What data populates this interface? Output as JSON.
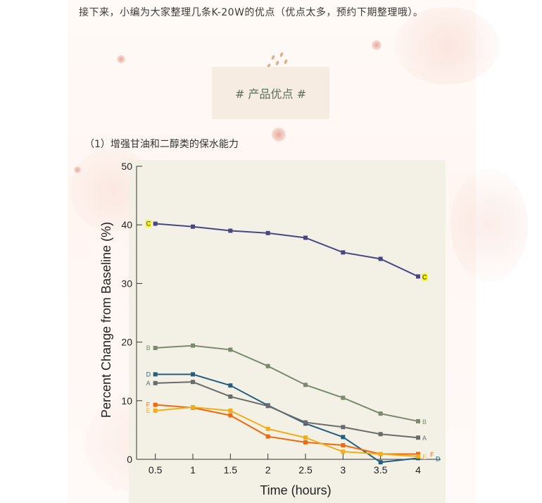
{
  "intro": {
    "text": "接下来，小编为大家整理几条K-20W的优点（优点太多，预约下期整理哦）。"
  },
  "badge": {
    "text": "# 产品优点 #"
  },
  "section": {
    "title": "（1）增强甘油和二醇类的保水能力"
  },
  "colors": {
    "C": "#4a4585",
    "B": "#7b8a6e",
    "D": "#245f80",
    "A": "#6b6b6b",
    "F": "#ee6a10",
    "E": "#f0ae1a",
    "highlight": "#f5f500"
  },
  "chart_data": {
    "type": "line",
    "title": "",
    "xlabel": "Time (hours)",
    "ylabel": "Percent Change from Baseline (%)",
    "x": [
      0.5,
      1,
      1.5,
      2,
      2.5,
      3,
      3.5,
      4
    ],
    "xlim": [
      0.25,
      4.3
    ],
    "ylim": [
      0,
      50
    ],
    "x_ticks": [
      "0.5",
      "1",
      "1.5",
      "2",
      "2.5",
      "3",
      "3.5",
      "4"
    ],
    "y_ticks": [
      0,
      10,
      20,
      30,
      40,
      50
    ],
    "y_tick_labels": [
      "0",
      "10",
      "20",
      "30",
      "40",
      "50"
    ],
    "grid": false,
    "series": [
      {
        "name": "C",
        "values": [
          40.2,
          39.7,
          39.0,
          38.6,
          37.8,
          35.3,
          34.2,
          31.2
        ]
      },
      {
        "name": "B",
        "values": [
          19.0,
          19.4,
          18.7,
          15.9,
          12.7,
          10.5,
          7.8,
          6.5
        ]
      },
      {
        "name": "D",
        "values": [
          14.5,
          14.5,
          12.6,
          9.2,
          6.1,
          3.8,
          -0.5,
          0.2
        ]
      },
      {
        "name": "A",
        "values": [
          13.0,
          13.2,
          10.7,
          9.1,
          6.3,
          5.5,
          4.3,
          3.7
        ]
      },
      {
        "name": "F",
        "values": [
          9.3,
          8.8,
          7.5,
          3.9,
          2.9,
          2.4,
          0.9,
          0.9
        ]
      },
      {
        "name": "E",
        "values": [
          8.3,
          8.9,
          8.3,
          5.2,
          3.7,
          1.3,
          0.9,
          0.5
        ]
      }
    ]
  }
}
